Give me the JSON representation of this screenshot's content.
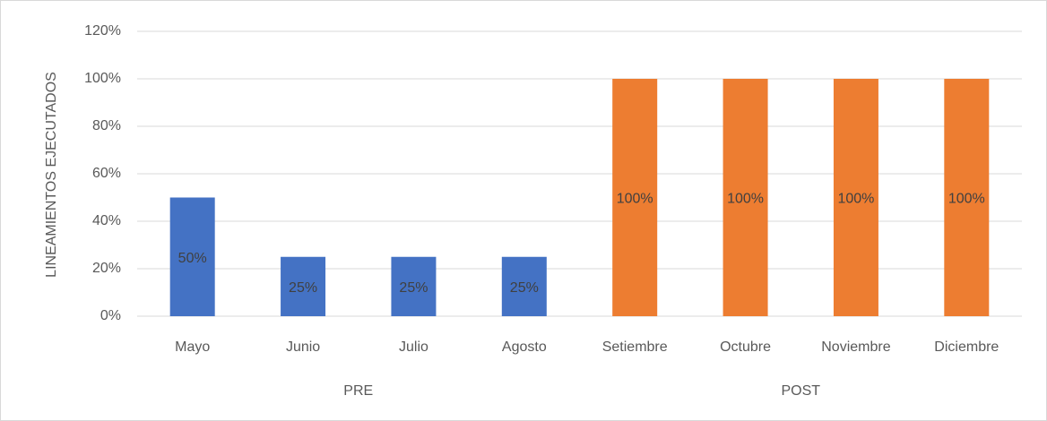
{
  "chart_data": {
    "type": "bar",
    "y_label": "LINEAMIENTOS EJECUTADOS",
    "categories": [
      "Mayo",
      "Junio",
      "Julio",
      "Agosto",
      "Setiembre",
      "Octubre",
      "Noviembre",
      "Diciembre"
    ],
    "series": [
      {
        "name": "PRE",
        "color": "#4472c4",
        "values": [
          50,
          25,
          25,
          25,
          null,
          null,
          null,
          null
        ],
        "value_labels": [
          "50%",
          "25%",
          "25%",
          "25%",
          null,
          null,
          null,
          null
        ]
      },
      {
        "name": "POST",
        "color": "#ed7d31",
        "values": [
          null,
          null,
          null,
          null,
          100,
          100,
          100,
          100
        ],
        "value_labels": [
          null,
          null,
          null,
          null,
          "100%",
          "100%",
          "100%",
          "100%"
        ]
      }
    ],
    "ylim": [
      0,
      120
    ],
    "yticks": [
      {
        "value": 0,
        "label": "0%"
      },
      {
        "value": 20,
        "label": "20%"
      },
      {
        "value": 40,
        "label": "40%"
      },
      {
        "value": 60,
        "label": "60%"
      },
      {
        "value": 80,
        "label": "80%"
      },
      {
        "value": 100,
        "label": "100%"
      },
      {
        "value": 120,
        "label": "120%"
      }
    ],
    "grid": true
  }
}
